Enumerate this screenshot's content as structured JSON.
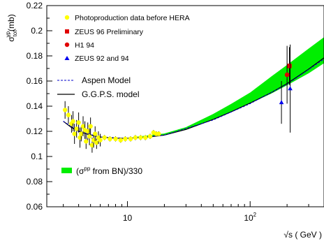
{
  "chart_data": {
    "type": "scatter",
    "title": "",
    "ylabel": "σ_tot^γp (mb)",
    "ylabel_parts": {
      "sigma": "σ",
      "sup": "γp",
      "sub": "tot",
      "unit": "(mb)"
    },
    "xlabel": "√s ( GeV )",
    "x_scale": "log",
    "xlim": [
      2.2,
      400
    ],
    "ylim": [
      0.06,
      0.22
    ],
    "x_ticks": [
      {
        "value": 10,
        "label": "10"
      },
      {
        "value": 100,
        "label": "10",
        "sup": "2"
      }
    ],
    "y_ticks": [
      {
        "value": 0.06,
        "label": "0.06"
      },
      {
        "value": 0.08,
        "label": "0.08"
      },
      {
        "value": 0.1,
        "label": "0.1"
      },
      {
        "value": 0.12,
        "label": "0.12"
      },
      {
        "value": 0.14,
        "label": "0.14"
      },
      {
        "value": 0.16,
        "label": "0.16"
      },
      {
        "value": 0.18,
        "label": "0.18"
      },
      {
        "value": 0.2,
        "label": "0.2"
      },
      {
        "value": 0.22,
        "label": "0.22"
      }
    ],
    "grid": false,
    "legend_position": "top-left",
    "legend": [
      {
        "label": "Photoproduction data before HERA",
        "marker": "circle",
        "color": "#ffff00"
      },
      {
        "label": "ZEUS 96 Preliminary",
        "marker": "square",
        "color": "#e00000"
      },
      {
        "label": "H1 94",
        "marker": "circle",
        "color": "#e00000"
      },
      {
        "label": "ZEUS 92 and 94",
        "marker": "triangle",
        "color": "#0000ee"
      },
      {
        "label": "Aspen Model",
        "marker": "dashed-line",
        "color": "#0000cc"
      },
      {
        "label": "G.G.P.S. model",
        "marker": "solid-line",
        "color": "#000000"
      }
    ],
    "band_legend": {
      "label_pre": "(σ",
      "label_sup": "pp",
      "label_post": " from BN)/330",
      "color": "#00ee00"
    },
    "series": [
      {
        "name": "Photoproduction data before HERA",
        "color": "#ffff00",
        "marker": "circle",
        "points": [
          {
            "x": 3.1,
            "y": 0.137,
            "err": 0.007
          },
          {
            "x": 3.3,
            "y": 0.133,
            "err": 0.007
          },
          {
            "x": 3.5,
            "y": 0.126,
            "err": 0.007
          },
          {
            "x": 3.6,
            "y": 0.128,
            "err": 0.008
          },
          {
            "x": 3.7,
            "y": 0.118,
            "err": 0.008
          },
          {
            "x": 3.85,
            "y": 0.122,
            "err": 0.007
          },
          {
            "x": 4.0,
            "y": 0.127,
            "err": 0.008
          },
          {
            "x": 4.1,
            "y": 0.115,
            "err": 0.008
          },
          {
            "x": 4.2,
            "y": 0.118,
            "err": 0.006
          },
          {
            "x": 4.35,
            "y": 0.124,
            "err": 0.008
          },
          {
            "x": 4.5,
            "y": 0.121,
            "err": 0.007
          },
          {
            "x": 4.6,
            "y": 0.112,
            "err": 0.006
          },
          {
            "x": 4.75,
            "y": 0.12,
            "err": 0.007
          },
          {
            "x": 4.9,
            "y": 0.116,
            "err": 0.007
          },
          {
            "x": 5.0,
            "y": 0.124,
            "err": 0.007
          },
          {
            "x": 5.15,
            "y": 0.109,
            "err": 0.006
          },
          {
            "x": 5.3,
            "y": 0.113,
            "err": 0.006
          },
          {
            "x": 5.45,
            "y": 0.118,
            "err": 0.006
          },
          {
            "x": 5.6,
            "y": 0.111,
            "err": 0.005
          },
          {
            "x": 5.8,
            "y": 0.115,
            "err": 0.005
          },
          {
            "x": 6.0,
            "y": 0.113,
            "err": 0.005
          },
          {
            "x": 6.5,
            "y": 0.115,
            "err": 0.002
          },
          {
            "x": 7.2,
            "y": 0.114,
            "err": 0.002
          },
          {
            "x": 8.0,
            "y": 0.114,
            "err": 0.002
          },
          {
            "x": 8.8,
            "y": 0.113,
            "err": 0.002
          },
          {
            "x": 9.6,
            "y": 0.114,
            "err": 0.002
          },
          {
            "x": 10.6,
            "y": 0.114,
            "err": 0.002
          },
          {
            "x": 11.6,
            "y": 0.115,
            "err": 0.002
          },
          {
            "x": 12.8,
            "y": 0.115,
            "err": 0.002
          },
          {
            "x": 14.0,
            "y": 0.115,
            "err": 0.002
          },
          {
            "x": 15.3,
            "y": 0.116,
            "err": 0.002
          },
          {
            "x": 16.3,
            "y": 0.119,
            "err": 0.002
          },
          {
            "x": 17.2,
            "y": 0.118,
            "err": 0.002
          },
          {
            "x": 18.0,
            "y": 0.118,
            "err": 0.002
          }
        ]
      },
      {
        "name": "ZEUS 96 Preliminary",
        "color": "#e00000",
        "marker": "square",
        "points": [
          {
            "x": 209,
            "y": 0.172,
            "err": 0.015
          }
        ]
      },
      {
        "name": "H1 94",
        "color": "#e00000",
        "marker": "circle",
        "points": [
          {
            "x": 200,
            "y": 0.165,
            "err": 0.023
          }
        ]
      },
      {
        "name": "ZEUS 92 and 94",
        "color": "#0000ee",
        "marker": "triangle",
        "points": [
          {
            "x": 180,
            "y": 0.143,
            "err": 0.017
          },
          {
            "x": 212,
            "y": 0.154,
            "err": 0.035
          }
        ]
      },
      {
        "name": "G.G.P.S. model",
        "type": "line",
        "color": "#000000",
        "points": [
          {
            "x": 3.0,
            "y": 0.128
          },
          {
            "x": 3.5,
            "y": 0.123
          },
          {
            "x": 4.0,
            "y": 0.12
          },
          {
            "x": 5.0,
            "y": 0.117
          },
          {
            "x": 6.0,
            "y": 0.1155
          },
          {
            "x": 8.0,
            "y": 0.1145
          },
          {
            "x": 10.0,
            "y": 0.1145
          },
          {
            "x": 15.0,
            "y": 0.1155
          },
          {
            "x": 20.0,
            "y": 0.117
          },
          {
            "x": 30.0,
            "y": 0.1215
          },
          {
            "x": 50.0,
            "y": 0.1295
          },
          {
            "x": 70.0,
            "y": 0.1355
          },
          {
            "x": 100.0,
            "y": 0.1425
          },
          {
            "x": 150.0,
            "y": 0.151
          },
          {
            "x": 200.0,
            "y": 0.158
          },
          {
            "x": 300.0,
            "y": 0.1695
          },
          {
            "x": 400.0,
            "y": 0.1785
          }
        ]
      },
      {
        "name": "Aspen Model",
        "type": "line",
        "color": "#0000cc",
        "dashed": true,
        "points": [
          {
            "x": 3.0,
            "y": 0.128
          },
          {
            "x": 4.0,
            "y": 0.12
          },
          {
            "x": 6.0,
            "y": 0.1155
          },
          {
            "x": 10.0,
            "y": 0.1145
          },
          {
            "x": 20.0,
            "y": 0.117
          },
          {
            "x": 50.0,
            "y": 0.129
          },
          {
            "x": 100.0,
            "y": 0.142
          },
          {
            "x": 200.0,
            "y": 0.1575
          },
          {
            "x": 400.0,
            "y": 0.1775
          }
        ]
      }
    ],
    "band": {
      "name": "(σpp from BN)/330",
      "color": "#00ee00",
      "points": [
        {
          "x": 12.0,
          "lo": 0.1155,
          "hi": 0.1155
        },
        {
          "x": 20.0,
          "lo": 0.1175,
          "hi": 0.118
        },
        {
          "x": 30.0,
          "lo": 0.1215,
          "hi": 0.123
        },
        {
          "x": 50.0,
          "lo": 0.1295,
          "hi": 0.1335
        },
        {
          "x": 70.0,
          "lo": 0.1355,
          "hi": 0.1415
        },
        {
          "x": 100.0,
          "lo": 0.1425,
          "hi": 0.1505
        },
        {
          "x": 150.0,
          "lo": 0.1505,
          "hi": 0.1635
        },
        {
          "x": 200.0,
          "lo": 0.157,
          "hi": 0.1725
        },
        {
          "x": 300.0,
          "lo": 0.1665,
          "hi": 0.1855
        },
        {
          "x": 400.0,
          "lo": 0.1745,
          "hi": 0.1945
        }
      ]
    }
  }
}
